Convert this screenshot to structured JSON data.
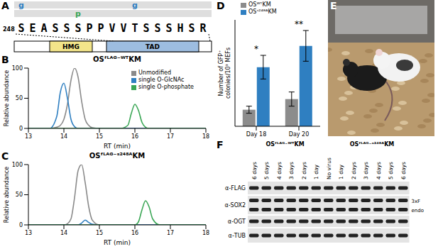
{
  "panel_a": {
    "label": "A",
    "start": "248",
    "sequence": "SEASSSPPVVTSSSHSR",
    "marks": [
      {
        "position": 0,
        "label": "g",
        "color": "#2f7fc1"
      },
      {
        "position": 5,
        "label": "p",
        "color": "#3aa655"
      },
      {
        "position": 10,
        "label": "g",
        "color": "#2f7fc1"
      }
    ],
    "domains": [
      {
        "label": "HMG",
        "color": "#f3e58a"
      },
      {
        "label": "TAD",
        "color": "#9dbde0"
      }
    ]
  },
  "chart_data": [
    {
      "panel": "B",
      "type": "line",
      "title": "OSᶠᴸᴬᴳ⁻ᵂᵀKM",
      "xlabel": "RT (min)",
      "ylabel": "Relative abundance",
      "x": [
        13,
        13.6,
        13.8,
        13.9,
        14.0,
        14.1,
        14.2,
        14.3,
        14.4,
        14.5,
        14.6,
        14.7,
        14.8,
        15.0,
        15.6,
        15.8,
        15.9,
        16.0,
        16.1,
        16.2,
        16.3,
        16.4,
        16.5,
        16.7,
        18
      ],
      "xlim": [
        13,
        18
      ],
      "xticks": [
        13,
        14,
        15,
        16,
        17,
        18
      ],
      "ylim": [
        0,
        100
      ],
      "yticks": [
        0,
        50,
        100
      ],
      "legend": "upper right",
      "series": [
        {
          "name": "Unmodified",
          "color": "#8a8a8a",
          "values": [
            0,
            0,
            2,
            5,
            15,
            40,
            80,
            100,
            85,
            45,
            15,
            5,
            1,
            0,
            0,
            0,
            0,
            0,
            0,
            0,
            0,
            0,
            0,
            0,
            0
          ]
        },
        {
          "name": "single O-GlcNAc",
          "color": "#2f7fc1",
          "values": [
            0,
            0,
            20,
            60,
            75,
            50,
            15,
            3,
            0,
            0,
            0,
            0,
            0,
            0,
            0,
            0,
            0,
            0,
            0,
            0,
            0,
            0,
            0,
            0,
            0
          ]
        },
        {
          "name": "single O-phosphate",
          "color": "#3aa655",
          "values": [
            0,
            0,
            0,
            0,
            0,
            0,
            0,
            0,
            0,
            0,
            0,
            0,
            0,
            0,
            0,
            5,
            25,
            40,
            30,
            10,
            2,
            0,
            0,
            0,
            0
          ]
        }
      ]
    },
    {
      "panel": "C",
      "type": "line",
      "title": "OSᶠᴸᴬᴳ⁻ˢ²⁴⁸ᴬKM",
      "xlabel": "RT (min)",
      "ylabel": "Relative abundance",
      "x": [
        13,
        13.6,
        13.8,
        13.9,
        14.0,
        14.1,
        14.2,
        14.3,
        14.4,
        14.5,
        14.6,
        14.7,
        14.8,
        15.0,
        15.6,
        15.8,
        15.9,
        16.0,
        16.1,
        16.2,
        16.3,
        16.4,
        16.5,
        16.7,
        18
      ],
      "xlim": [
        13,
        18
      ],
      "xticks": [
        13,
        14,
        15,
        16,
        17,
        18
      ],
      "ylim": [
        0,
        100
      ],
      "yticks": [
        0,
        50,
        100
      ],
      "series": [
        {
          "color": "#8a8a8a",
          "values": [
            0,
            0,
            0,
            0,
            0,
            2,
            10,
            45,
            90,
            100,
            70,
            30,
            8,
            0,
            0,
            0,
            0,
            0,
            0,
            0,
            0,
            0,
            0,
            0,
            0
          ]
        },
        {
          "color": "#2f7fc1",
          "values": [
            0,
            0,
            0,
            0,
            0,
            0,
            0,
            0,
            0,
            3,
            8,
            4,
            1,
            0,
            0,
            0,
            0,
            0,
            0,
            0,
            0,
            0,
            0,
            0,
            0
          ]
        },
        {
          "color": "#3aa655",
          "values": [
            0,
            0,
            0,
            0,
            0,
            0,
            0,
            0,
            0,
            0,
            0,
            0,
            0,
            0,
            0,
            0,
            0,
            0,
            5,
            25,
            40,
            30,
            10,
            0,
            0
          ]
        }
      ]
    },
    {
      "panel": "D",
      "type": "bar",
      "ylabel": "Number of GFP⁺ colonies/10³ MEFs",
      "categories": [
        "Day 18",
        "Day 20"
      ],
      "ylim": [
        0,
        90
      ],
      "tick_labels": "x",
      "legend": "upper left",
      "series": [
        {
          "name": "OSᵂᵀKM",
          "color": "#8c8c8c",
          "values": [
            14,
            23
          ],
          "errors": [
            3,
            6
          ]
        },
        {
          "name": "OSˢ²⁴⁸ᴬKM",
          "color": "#2f7fc1",
          "values": [
            50,
            68
          ],
          "errors": [
            10,
            13
          ]
        }
      ],
      "annotations": [
        {
          "text": "*",
          "category": "Day 18"
        },
        {
          "text": "**",
          "category": "Day 20"
        }
      ]
    }
  ],
  "panel_e": {
    "label": "E"
  },
  "panel_f": {
    "label": "F",
    "lanes": [
      "6 days",
      "5 days",
      "4 days",
      "3 days",
      "2 days",
      "1 day",
      "No virus",
      "1 day",
      "2 days",
      "3 days",
      "4 days",
      "5 days",
      "6 days"
    ],
    "groups": [
      {
        "label": "OSᶠᴸᴬᴳ⁻ᵂᵀKM",
        "first": 0,
        "last": 5
      },
      {
        "label": "OSᶠᴸᴬᴳ⁻ˢ²⁴⁸ᴬKM",
        "first": 7,
        "last": 12
      }
    ],
    "rows": [
      {
        "antibody": "α-FLAG"
      },
      {
        "antibody": "α-SOX2",
        "band_labels": [
          "3xF",
          "endo"
        ]
      },
      {
        "antibody": "α-OGT"
      },
      {
        "antibody": "α-TUB"
      }
    ]
  }
}
